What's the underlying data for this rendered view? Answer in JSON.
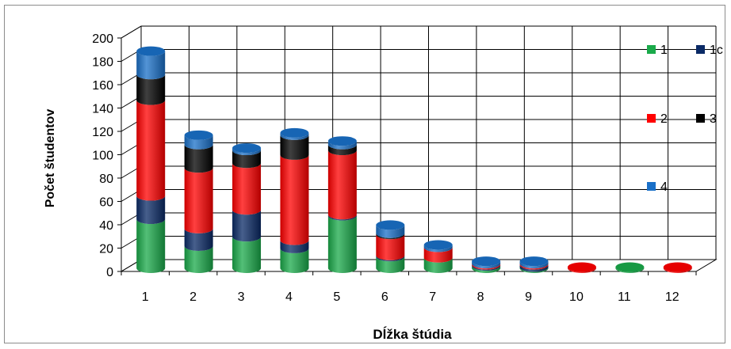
{
  "chart_data": {
    "type": "bar",
    "stacked": true,
    "style": "3d-cylinder",
    "xlabel": "Dĺžka štúdia",
    "ylabel": "Počet študentov",
    "ylim": [
      0,
      200
    ],
    "ytick_step": 20,
    "grid": true,
    "legend_position": "right",
    "categories": [
      "1",
      "2",
      "3",
      "4",
      "5",
      "6",
      "7",
      "8",
      "9",
      "10",
      "11",
      "12"
    ],
    "series": [
      {
        "name": "1",
        "color": "#1aaa4a",
        "values": [
          42,
          19,
          27,
          17,
          45,
          10,
          9,
          2,
          1,
          0,
          1,
          0
        ]
      },
      {
        "name": "1c",
        "color": "#0a2a66",
        "values": [
          20,
          15,
          23,
          7,
          1,
          1,
          0,
          1,
          2,
          0,
          0,
          0
        ]
      },
      {
        "name": "2",
        "color": "#ff0000",
        "values": [
          82,
          52,
          40,
          73,
          55,
          18,
          9,
          1,
          1,
          1,
          0,
          1
        ]
      },
      {
        "name": "3",
        "color": "#000000",
        "values": [
          22,
          20,
          11,
          17,
          5,
          1,
          0,
          0,
          0,
          0,
          0,
          0
        ]
      },
      {
        "name": "4",
        "color": "#1a70c8",
        "values": [
          20,
          8,
          2,
          2,
          3,
          7,
          2,
          2,
          2,
          0,
          0,
          0
        ]
      }
    ]
  }
}
